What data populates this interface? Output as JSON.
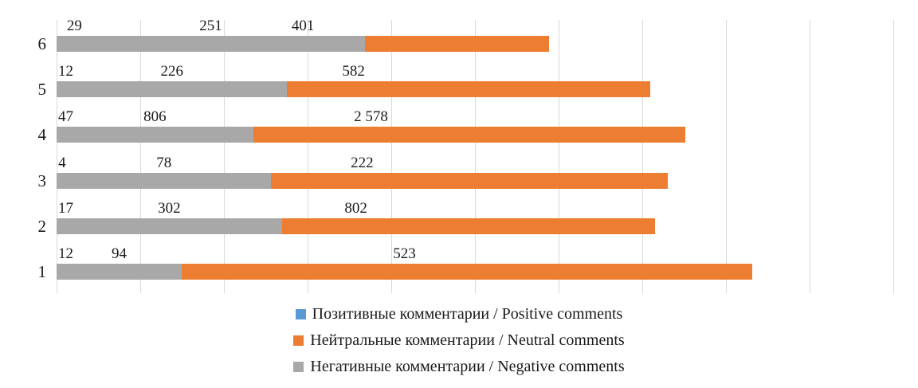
{
  "chart_data": {
    "type": "bar",
    "subtype": "horizontal-100pct-stacked",
    "title": "",
    "categories": [
      "6",
      "5",
      "4",
      "3",
      "2",
      "1"
    ],
    "series": [
      {
        "name": "Позитивные комментарии / Positive comments",
        "color": "#5B9BD5",
        "values": [
          29,
          12,
          47,
          4,
          17,
          12
        ],
        "labels": [
          "29",
          "12",
          "47",
          "4",
          "17",
          "12"
        ]
      },
      {
        "name": "Нейтральные комментарии / Neutral comments",
        "color": "#ED7D31",
        "values": [
          401,
          582,
          2578,
          222,
          802,
          523
        ],
        "labels": [
          "401",
          "582",
          "2 578",
          "222",
          "802",
          "523"
        ]
      },
      {
        "name": "Негативные комментарии / Negative comments",
        "color": "#A8A8A8",
        "values": [
          251,
          226,
          806,
          78,
          302,
          94
        ],
        "labels": [
          "251",
          "226",
          "806",
          "78",
          "302",
          "94"
        ]
      }
    ],
    "axis": {
      "x_min_pct": 0,
      "x_max_pct": 100,
      "gridline_interval_pct": 10,
      "grid": true,
      "gridline_color": "#D9D9D9",
      "tick_labels_shown": false
    },
    "legend_position": "bottom",
    "data_label_position": "above-segment-center"
  }
}
